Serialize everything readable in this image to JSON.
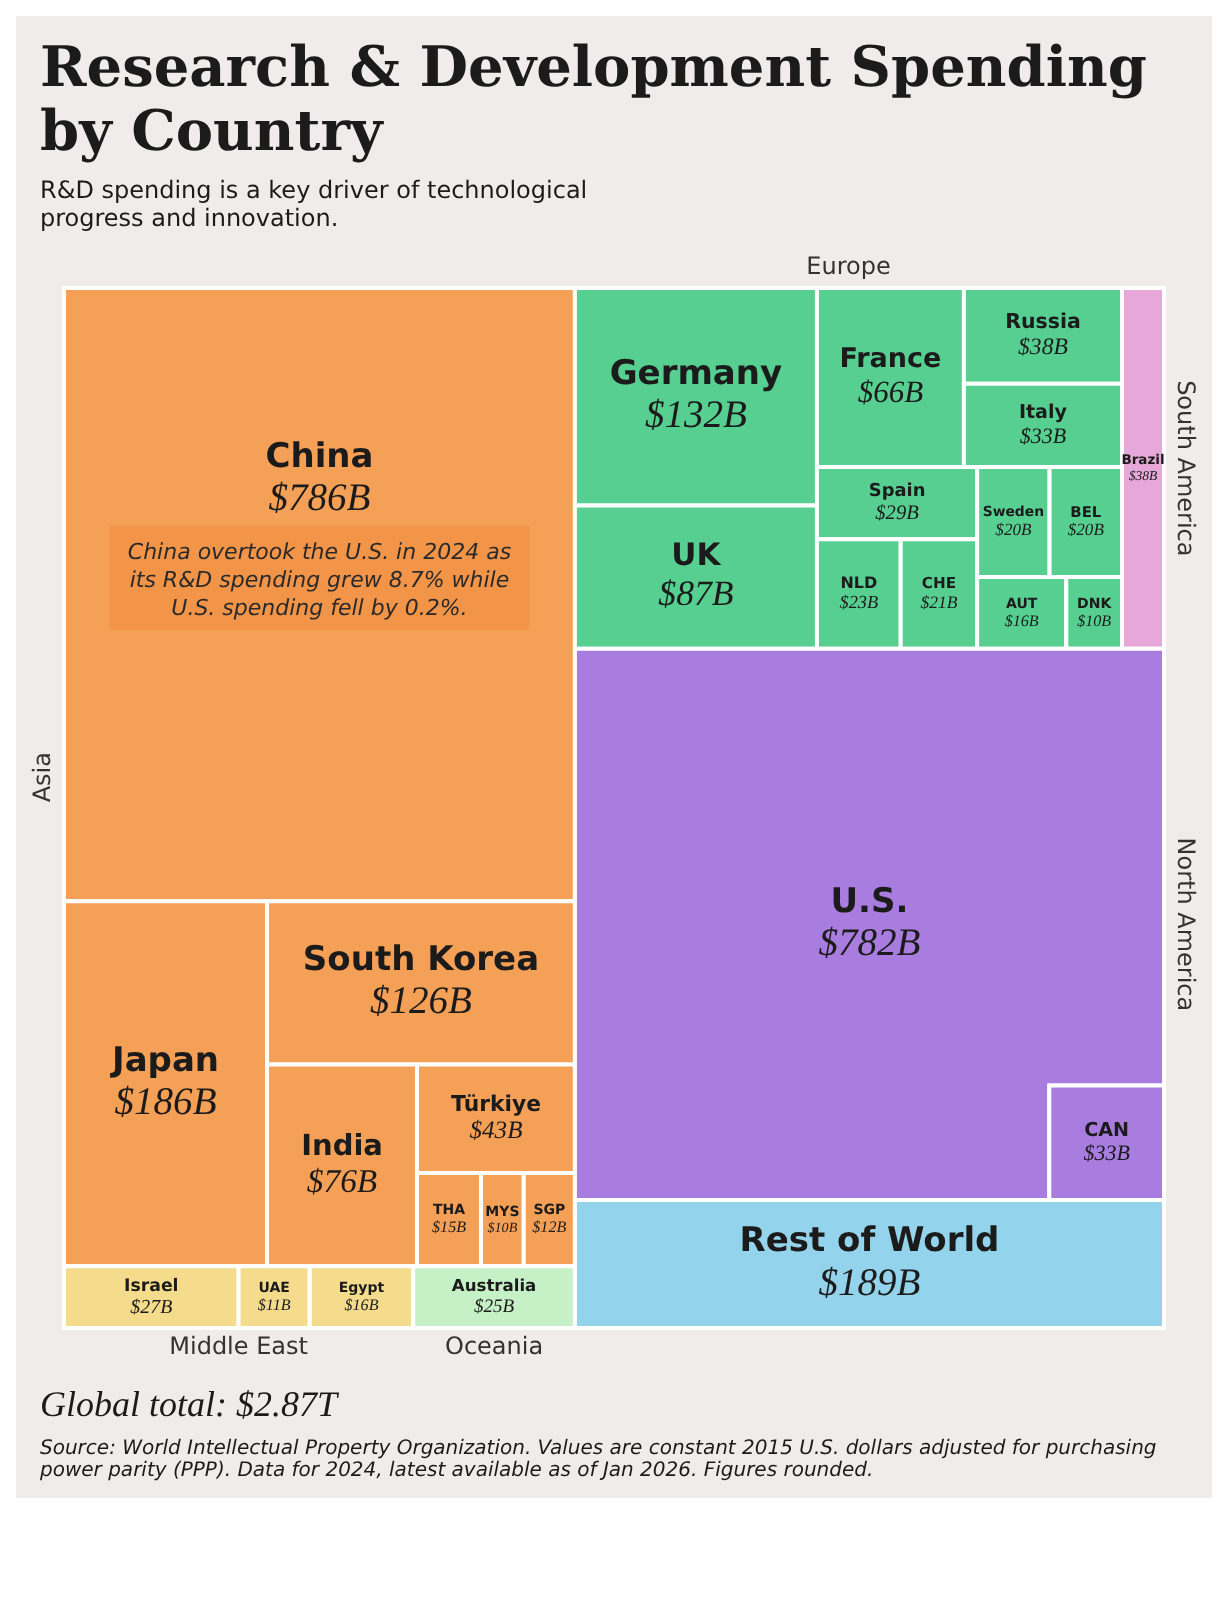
{
  "chart_data": {
    "type": "other",
    "title": "Research & Development Spending by Country",
    "subtitle": "R&D spending is a key driver of technological progress and innovation.",
    "categories": [
      "China",
      "Japan",
      "South Korea",
      "India",
      "Türkiye",
      "THA",
      "MYS",
      "SGP",
      "Israel",
      "UAE",
      "Egypt",
      "Australia",
      "Germany",
      "UK",
      "France",
      "Russia",
      "Italy",
      "Spain",
      "NLD",
      "CHE",
      "Sweden",
      "BEL",
      "AUT",
      "DNK",
      "Brazil",
      "U.S.",
      "CAN",
      "Rest of World"
    ],
    "series": [
      {
        "name": "Asia",
        "color": "#f5a057",
        "values": [
          786,
          186,
          126,
          76,
          43,
          15,
          10,
          12,
          null,
          null,
          null,
          null,
          null,
          null,
          null,
          null,
          null,
          null,
          null,
          null,
          null,
          null,
          null,
          null,
          null,
          null,
          null,
          null
        ],
        "value_labels": [
          "$786B",
          "$186B",
          "$126B",
          "$76B",
          "$43B",
          "$15B",
          "$10B",
          "$12B",
          null,
          null,
          null,
          null,
          null,
          null,
          null,
          null,
          null,
          null,
          null,
          null,
          null,
          null,
          null,
          null,
          null,
          null,
          null,
          null
        ]
      },
      {
        "name": "Middle East",
        "color": "#f4dc8c",
        "values": [
          null,
          null,
          null,
          null,
          null,
          null,
          null,
          null,
          27,
          11,
          16,
          null,
          null,
          null,
          null,
          null,
          null,
          null,
          null,
          null,
          null,
          null,
          null,
          null,
          null,
          null,
          null,
          null
        ],
        "value_labels": [
          null,
          null,
          null,
          null,
          null,
          null,
          null,
          null,
          "$27B",
          "$11B",
          "$16B",
          null,
          null,
          null,
          null,
          null,
          null,
          null,
          null,
          null,
          null,
          null,
          null,
          null,
          null,
          null,
          null,
          null
        ]
      },
      {
        "name": "Oceania",
        "color": "#c6f0c6",
        "values": [
          null,
          null,
          null,
          null,
          null,
          null,
          null,
          null,
          null,
          null,
          null,
          25,
          null,
          null,
          null,
          null,
          null,
          null,
          null,
          null,
          null,
          null,
          null,
          null,
          null,
          null,
          null,
          null
        ],
        "value_labels": [
          null,
          null,
          null,
          null,
          null,
          null,
          null,
          null,
          null,
          null,
          null,
          "$25B",
          null,
          null,
          null,
          null,
          null,
          null,
          null,
          null,
          null,
          null,
          null,
          null,
          null,
          null,
          null,
          null
        ]
      },
      {
        "name": "Europe",
        "color": "#57cf90",
        "values": [
          null,
          null,
          null,
          null,
          null,
          null,
          null,
          null,
          null,
          null,
          null,
          null,
          132,
          87,
          66,
          38,
          33,
          29,
          23,
          21,
          20,
          20,
          16,
          10,
          null,
          null,
          null,
          null
        ],
        "value_labels": [
          null,
          null,
          null,
          null,
          null,
          null,
          null,
          null,
          null,
          null,
          null,
          null,
          "$132B",
          "$87B",
          "$66B",
          "$38B",
          "$33B",
          "$29B",
          "$23B",
          "$21B",
          "$20B",
          "$20B",
          "$16B",
          "$10B",
          null,
          null,
          null,
          null
        ]
      },
      {
        "name": "South America",
        "color": "#e6a8d8",
        "values": [
          null,
          null,
          null,
          null,
          null,
          null,
          null,
          null,
          null,
          null,
          null,
          null,
          null,
          null,
          null,
          null,
          null,
          null,
          null,
          null,
          null,
          null,
          null,
          null,
          38,
          null,
          null,
          null
        ],
        "value_labels": [
          null,
          null,
          null,
          null,
          null,
          null,
          null,
          null,
          null,
          null,
          null,
          null,
          null,
          null,
          null,
          null,
          null,
          null,
          null,
          null,
          null,
          null,
          null,
          null,
          "$38B",
          null,
          null,
          null
        ]
      },
      {
        "name": "North America",
        "color": "#a97ce0",
        "values": [
          null,
          null,
          null,
          null,
          null,
          null,
          null,
          null,
          null,
          null,
          null,
          null,
          null,
          null,
          null,
          null,
          null,
          null,
          null,
          null,
          null,
          null,
          null,
          null,
          null,
          782,
          33,
          null
        ],
        "value_labels": [
          null,
          null,
          null,
          null,
          null,
          null,
          null,
          null,
          null,
          null,
          null,
          null,
          null,
          null,
          null,
          null,
          null,
          null,
          null,
          null,
          null,
          null,
          null,
          null,
          null,
          "$782B",
          "$33B",
          null
        ]
      },
      {
        "color": "#94d3ec",
        "values": [
          null,
          null,
          null,
          null,
          null,
          null,
          null,
          null,
          null,
          null,
          null,
          null,
          null,
          null,
          null,
          null,
          null,
          null,
          null,
          null,
          null,
          null,
          null,
          null,
          null,
          null,
          null,
          189
        ],
        "value_labels": [
          null,
          null,
          null,
          null,
          null,
          null,
          null,
          null,
          null,
          null,
          null,
          null,
          null,
          null,
          null,
          null,
          null,
          null,
          null,
          null,
          null,
          null,
          null,
          null,
          null,
          null,
          null,
          "$189B"
        ]
      }
    ],
    "annotations": [
      "China overtook the U.S. in 2024 as its R&D spending grew 8.7% while U.S. spending fell by 0.2%.",
      "Global total: $2.87T",
      "Source: World Intellectual Property Organization. Values are constant 2015 U.S. dollars adjusted for purchasing power parity (PPP). Data for 2024, latest available as of Jan 2026. Figures rounded."
    ]
  }
}
